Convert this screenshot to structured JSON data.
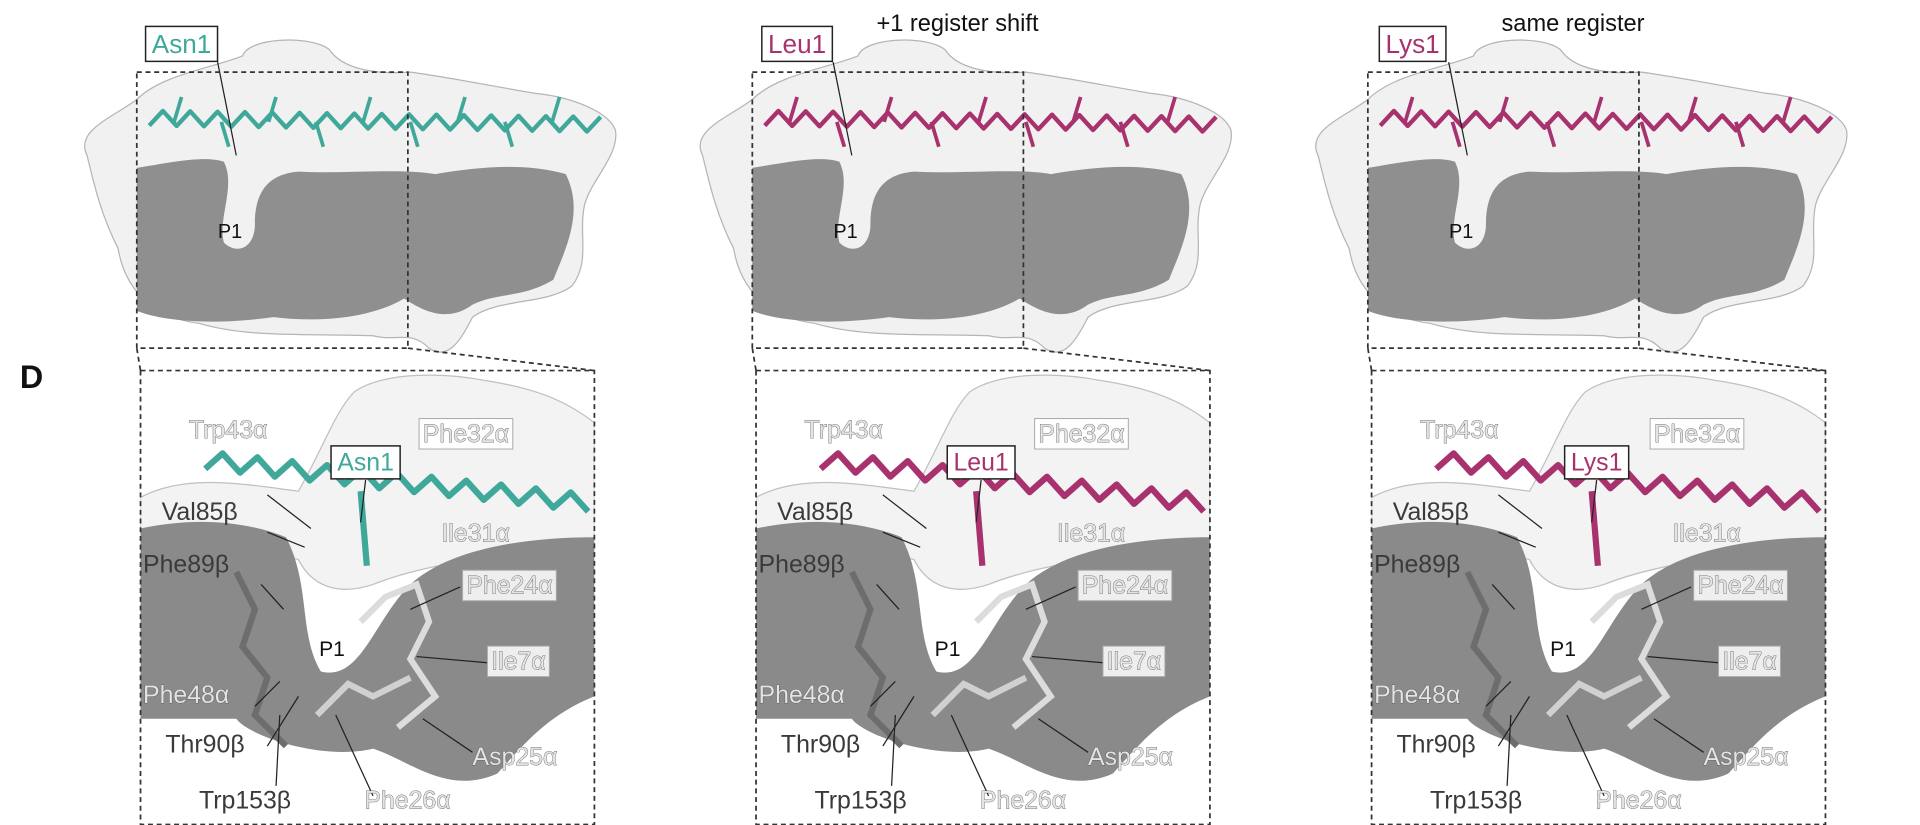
{
  "panel_label": "D",
  "panels": [
    {
      "color": "#3fa89a",
      "residue_top": "Asn1",
      "p1_top": "P1",
      "residue_zoom": "Asn1",
      "p1_zoom": "P1",
      "labels": [
        "Trp43α",
        "Phe32α",
        "Val85β",
        "Ile31α",
        "Phe89β",
        "Phe24α",
        "Ile7α",
        "Phe48α",
        "Thr90β",
        "Asp25α",
        "Trp153β",
        "Phe26α"
      ]
    },
    {
      "title": "+1 register shift",
      "color": "#a8326e",
      "residue_top": "Leu1",
      "p1_top": "P1",
      "residue_zoom": "Leu1",
      "p1_zoom": "P1",
      "labels": [
        "Trp43α",
        "Phe32α",
        "Val85β",
        "Ile31α",
        "Phe89β",
        "Phe24α",
        "Ile7α",
        "Phe48α",
        "Thr90β",
        "Asp25α",
        "Trp153β",
        "Phe26α"
      ]
    },
    {
      "title": "same register",
      "color": "#a8326e",
      "residue_top": "Lys1",
      "p1_top": "P1",
      "residue_zoom": "Lys1",
      "p1_zoom": "P1",
      "labels": [
        "Trp43α",
        "Phe32α",
        "Val85β",
        "Ile31α",
        "Phe89β",
        "Phe24α",
        "Ile7α",
        "Phe48α",
        "Thr90β",
        "Asp25α",
        "Trp153β",
        "Phe26α"
      ]
    }
  ]
}
